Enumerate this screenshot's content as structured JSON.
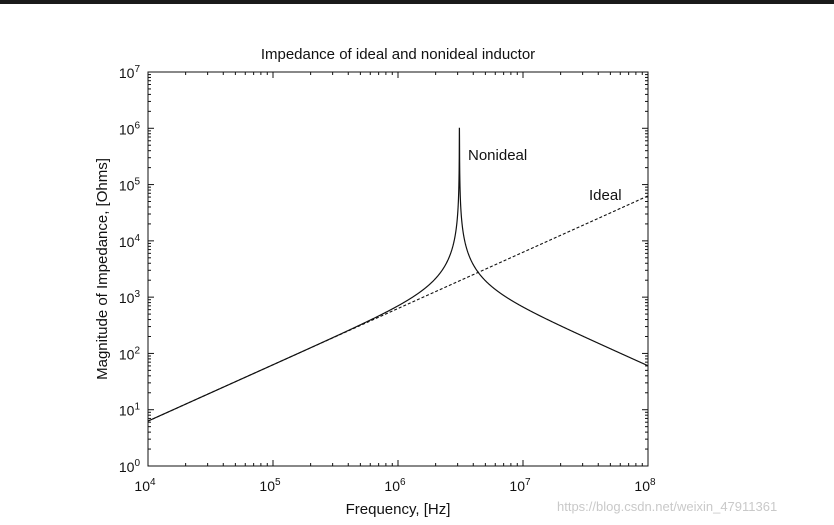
{
  "chart_data": {
    "type": "line",
    "title": "Impedance of ideal and nonideal inductor",
    "xlabel": "Frequency, [Hz]",
    "ylabel": "Magnitude of Impedance, [Ohms]",
    "xscale": "log",
    "yscale": "log",
    "xlim": [
      10000,
      100000000
    ],
    "ylim": [
      1,
      10000000
    ],
    "xticks": [
      {
        "base": "10",
        "exp": "4"
      },
      {
        "base": "10",
        "exp": "5"
      },
      {
        "base": "10",
        "exp": "6"
      },
      {
        "base": "10",
        "exp": "7"
      },
      {
        "base": "10",
        "exp": "8"
      }
    ],
    "yticks": [
      {
        "base": "10",
        "exp": "0"
      },
      {
        "base": "10",
        "exp": "1"
      },
      {
        "base": "10",
        "exp": "2"
      },
      {
        "base": "10",
        "exp": "3"
      },
      {
        "base": "10",
        "exp": "4"
      },
      {
        "base": "10",
        "exp": "5"
      },
      {
        "base": "10",
        "exp": "6"
      },
      {
        "base": "10",
        "exp": "7"
      }
    ],
    "series": [
      {
        "name": "Nonideal",
        "style": "solid",
        "color": "#111111",
        "inductance_H": 0.0001,
        "self_resonant_frequency_Hz": 3100000,
        "peak_ohms": 1000000,
        "label": "Nonideal"
      },
      {
        "name": "Ideal",
        "style": "dashed",
        "color": "#111111",
        "inductance_H": 0.0001,
        "label": "Ideal"
      }
    ]
  },
  "watermark": "https://blog.csdn.net/weixin_47911361"
}
